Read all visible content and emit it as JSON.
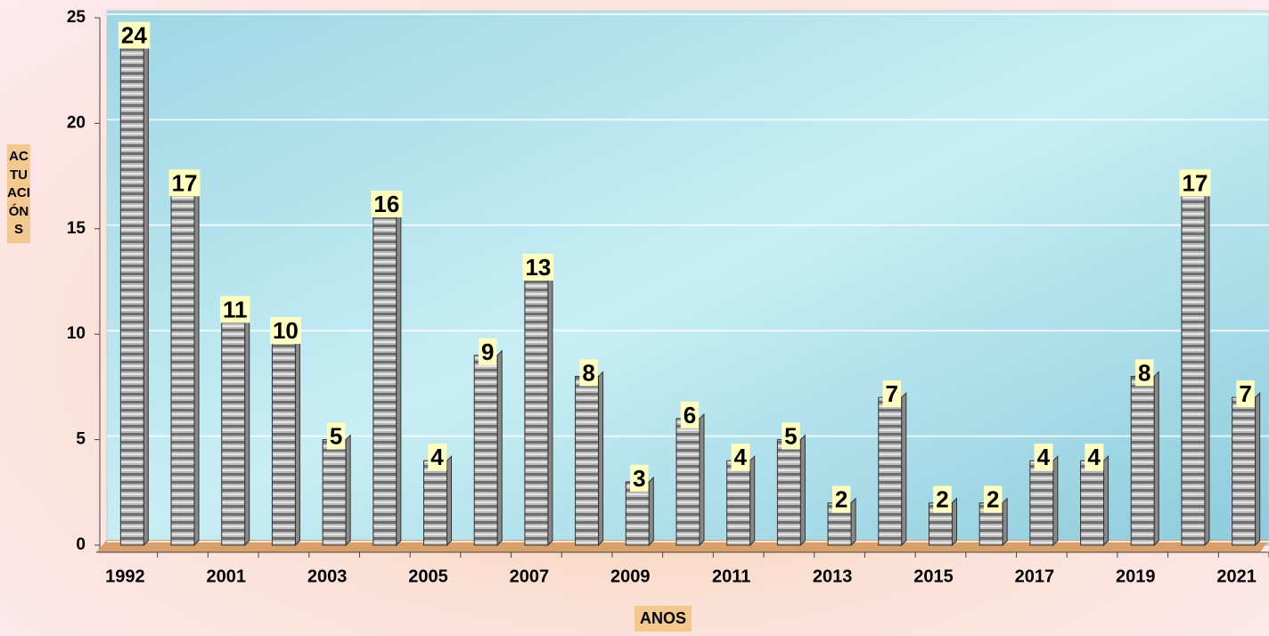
{
  "chart_data": {
    "type": "bar",
    "x_label": "ANOS",
    "y_label": "ACTUACIÓNS",
    "categories": [
      "1992",
      null,
      "2001",
      null,
      "2003",
      null,
      "2005",
      null,
      "2007",
      null,
      "2009",
      null,
      "2011",
      null,
      "2013",
      null,
      "2015",
      null,
      "2017",
      null,
      "2019",
      null,
      "2021"
    ],
    "values": [
      24,
      17,
      11,
      10,
      5,
      16,
      4,
      9,
      13,
      8,
      3,
      6,
      4,
      5,
      2,
      7,
      2,
      2,
      4,
      4,
      8,
      17,
      7
    ],
    "color": "#9a9a9a",
    "ylim": [
      0,
      25
    ],
    "yticks": [
      0,
      5,
      10,
      15,
      20,
      25
    ],
    "grid": true
  }
}
